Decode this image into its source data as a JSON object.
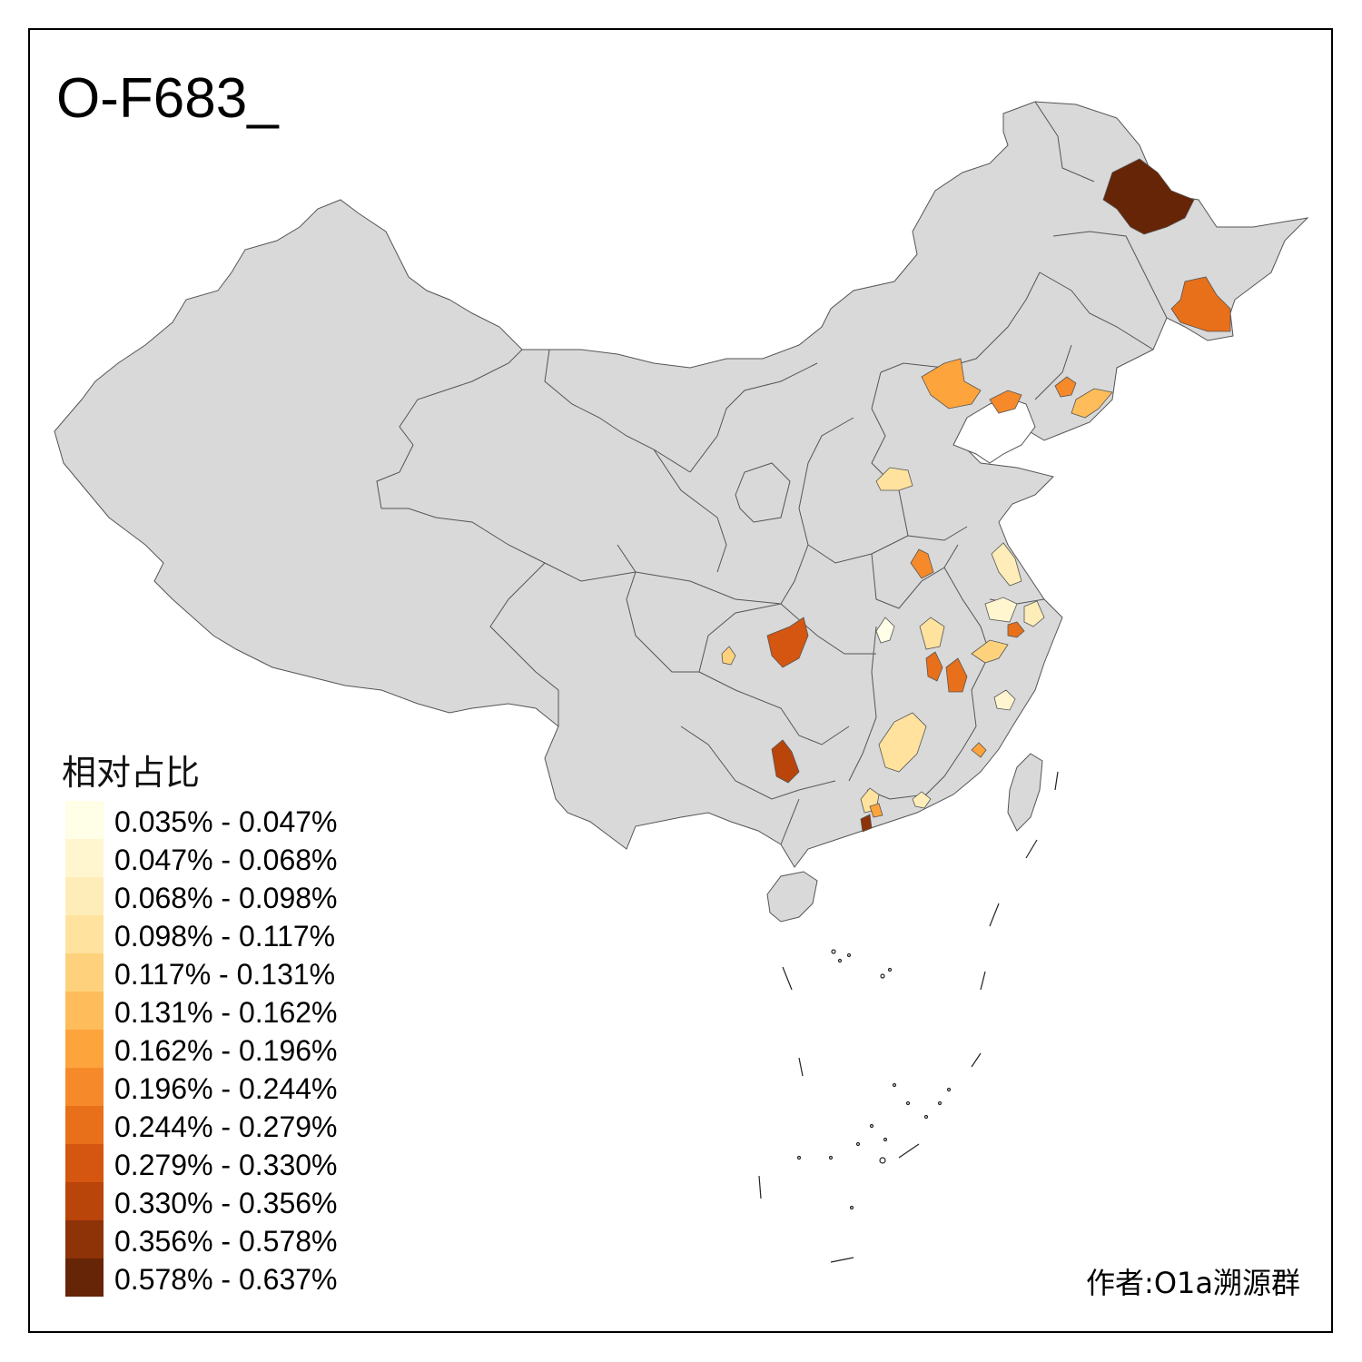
{
  "title": "O-F683_",
  "author": "作者:O1a溯源群",
  "legend": {
    "title": "相对占比",
    "classes": [
      {
        "label": "0.035% - 0.047%",
        "color": "#FFFEE6"
      },
      {
        "label": "0.047% - 0.068%",
        "color": "#FFF6D0"
      },
      {
        "label": "0.068% - 0.098%",
        "color": "#FEEDB8"
      },
      {
        "label": "0.098% - 0.117%",
        "color": "#FEE29E"
      },
      {
        "label": "0.117% - 0.131%",
        "color": "#FED27C"
      },
      {
        "label": "0.131% - 0.162%",
        "color": "#FEBD5A"
      },
      {
        "label": "0.162% - 0.196%",
        "color": "#FEA43C"
      },
      {
        "label": "0.196% - 0.244%",
        "color": "#F68A2A"
      },
      {
        "label": "0.244% - 0.279%",
        "color": "#E8701A"
      },
      {
        "label": "0.279% - 0.330%",
        "color": "#D45610"
      },
      {
        "label": "0.330% - 0.356%",
        "color": "#B9450A"
      },
      {
        "label": "0.356% - 0.578%",
        "color": "#8E3208"
      },
      {
        "label": "0.578% - 0.637%",
        "color": "#662506"
      }
    ]
  },
  "map": {
    "base_fill": "#D9D9D9",
    "border_color": "#555555"
  }
}
